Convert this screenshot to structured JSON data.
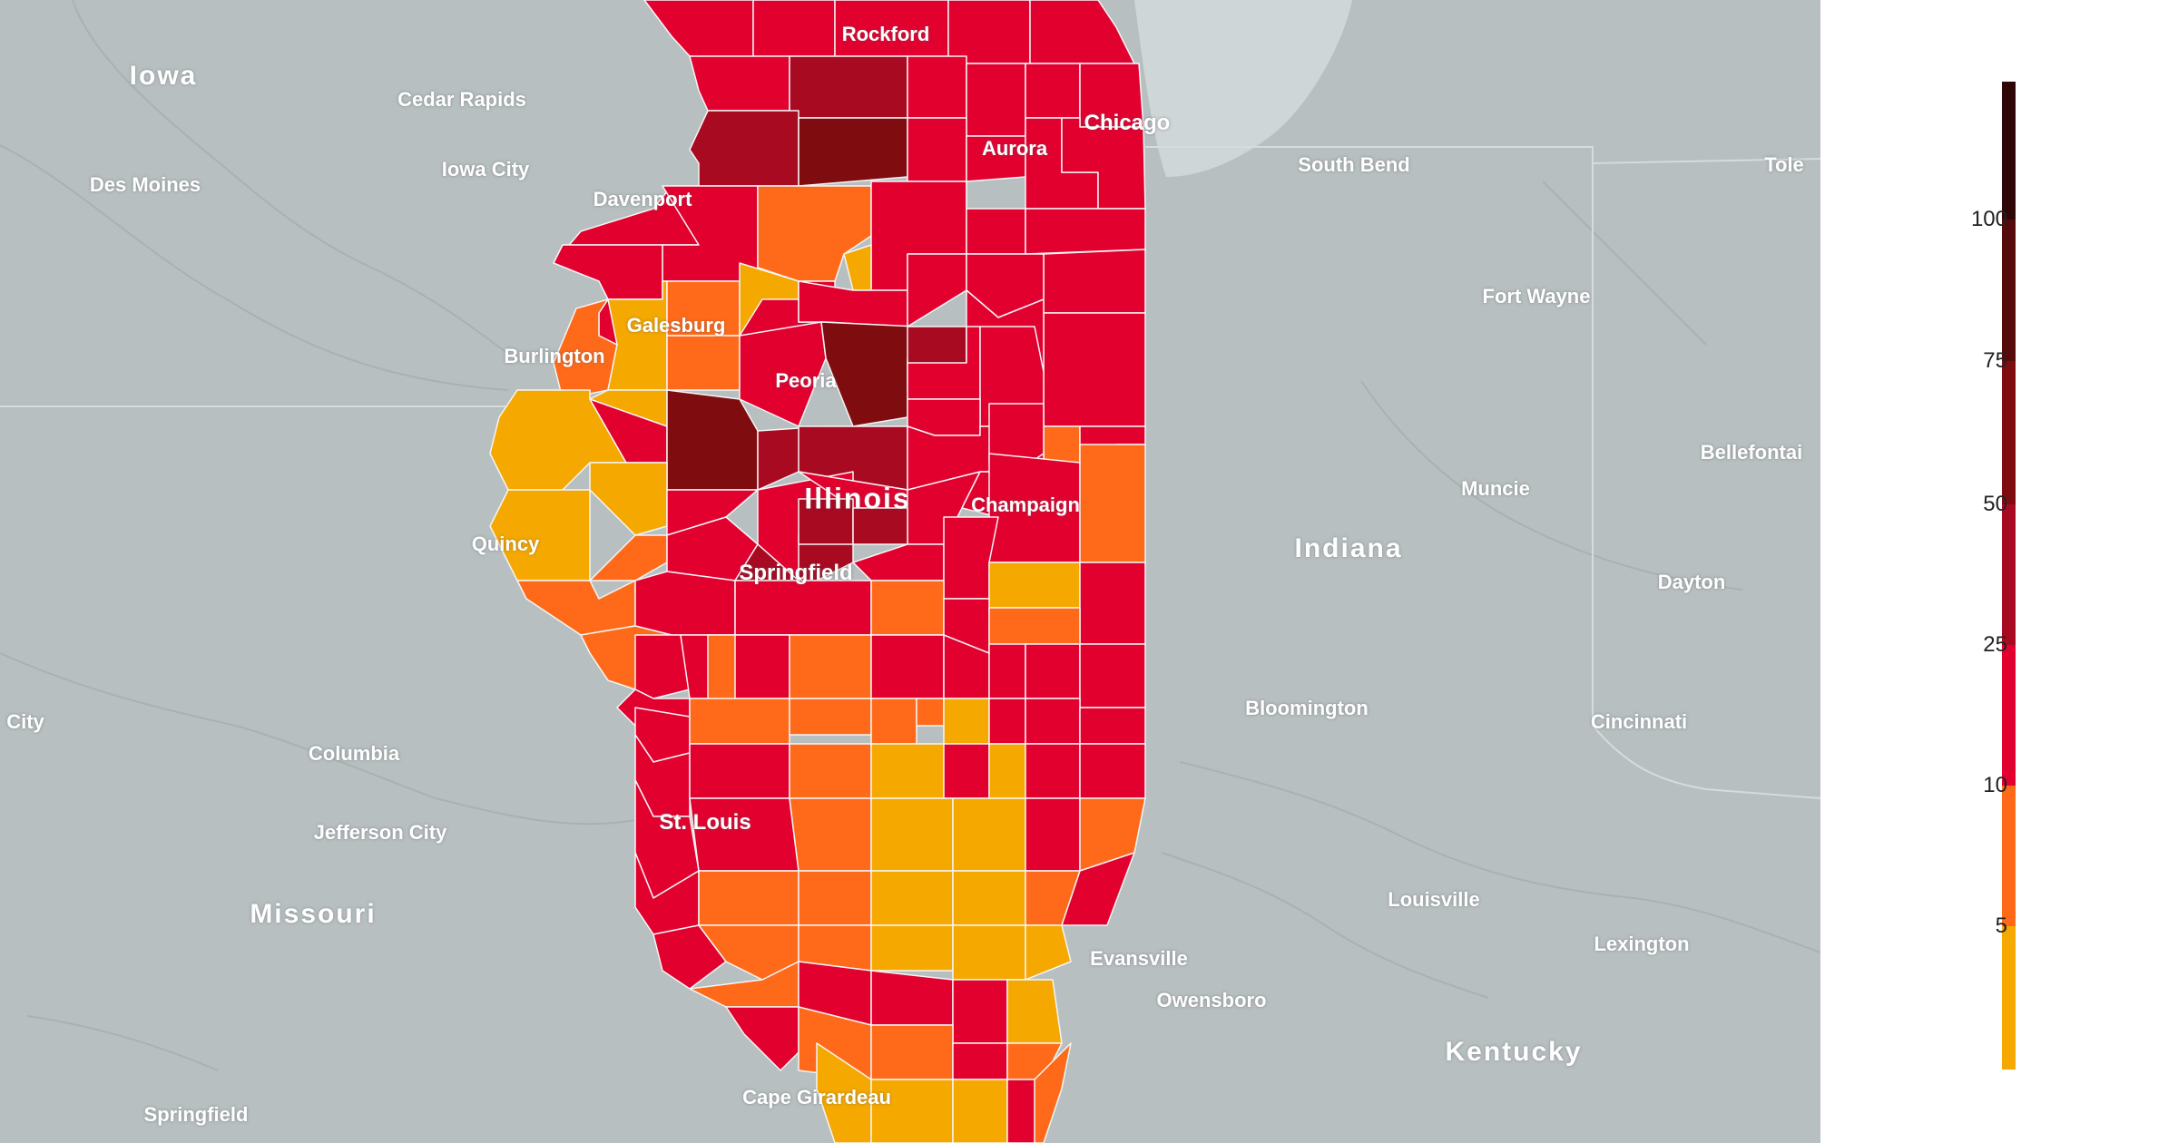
{
  "map": {
    "background_color": "#b7bfc1",
    "lake_color": "#cfd6d7",
    "border_color": "#d6dbdc",
    "state_labels": [
      {
        "name": "Iowa"
      },
      {
        "name": "Illinois"
      },
      {
        "name": "Indiana"
      },
      {
        "name": "Missouri"
      },
      {
        "name": "Kentucky"
      }
    ],
    "city_labels": [
      {
        "name": "Rockford"
      },
      {
        "name": "Chicago"
      },
      {
        "name": "Aurora"
      },
      {
        "name": "Cedar Rapids"
      },
      {
        "name": "Iowa City"
      },
      {
        "name": "Des Moines"
      },
      {
        "name": "Davenport"
      },
      {
        "name": "South Bend"
      },
      {
        "name": "Tole"
      },
      {
        "name": "Fort Wayne"
      },
      {
        "name": "Galesburg"
      },
      {
        "name": "Burlington"
      },
      {
        "name": "Peoria"
      },
      {
        "name": "Bellefontai"
      },
      {
        "name": "Muncie"
      },
      {
        "name": "Champaign"
      },
      {
        "name": "Quincy"
      },
      {
        "name": "Springfield"
      },
      {
        "name": "Dayton"
      },
      {
        "name": "Bloomington"
      },
      {
        "name": "Cincinnati"
      },
      {
        "name": "City"
      },
      {
        "name": "Columbia"
      },
      {
        "name": "Jefferson City"
      },
      {
        "name": "St. Louis"
      },
      {
        "name": "Louisville"
      },
      {
        "name": "Lexington"
      },
      {
        "name": "Evansville"
      },
      {
        "name": "Owensboro"
      },
      {
        "name": "Cape Girardeau"
      },
      {
        "name": "Springfield"
      }
    ]
  },
  "legend": {
    "ticks": [
      "100",
      "75",
      "50",
      "25",
      "10",
      "5"
    ],
    "colors": [
      "#2e0608",
      "#560a0c",
      "#7f0d10",
      "#a80a22",
      "#e2002f",
      "#ff6a1a",
      "#f5a800"
    ]
  }
}
